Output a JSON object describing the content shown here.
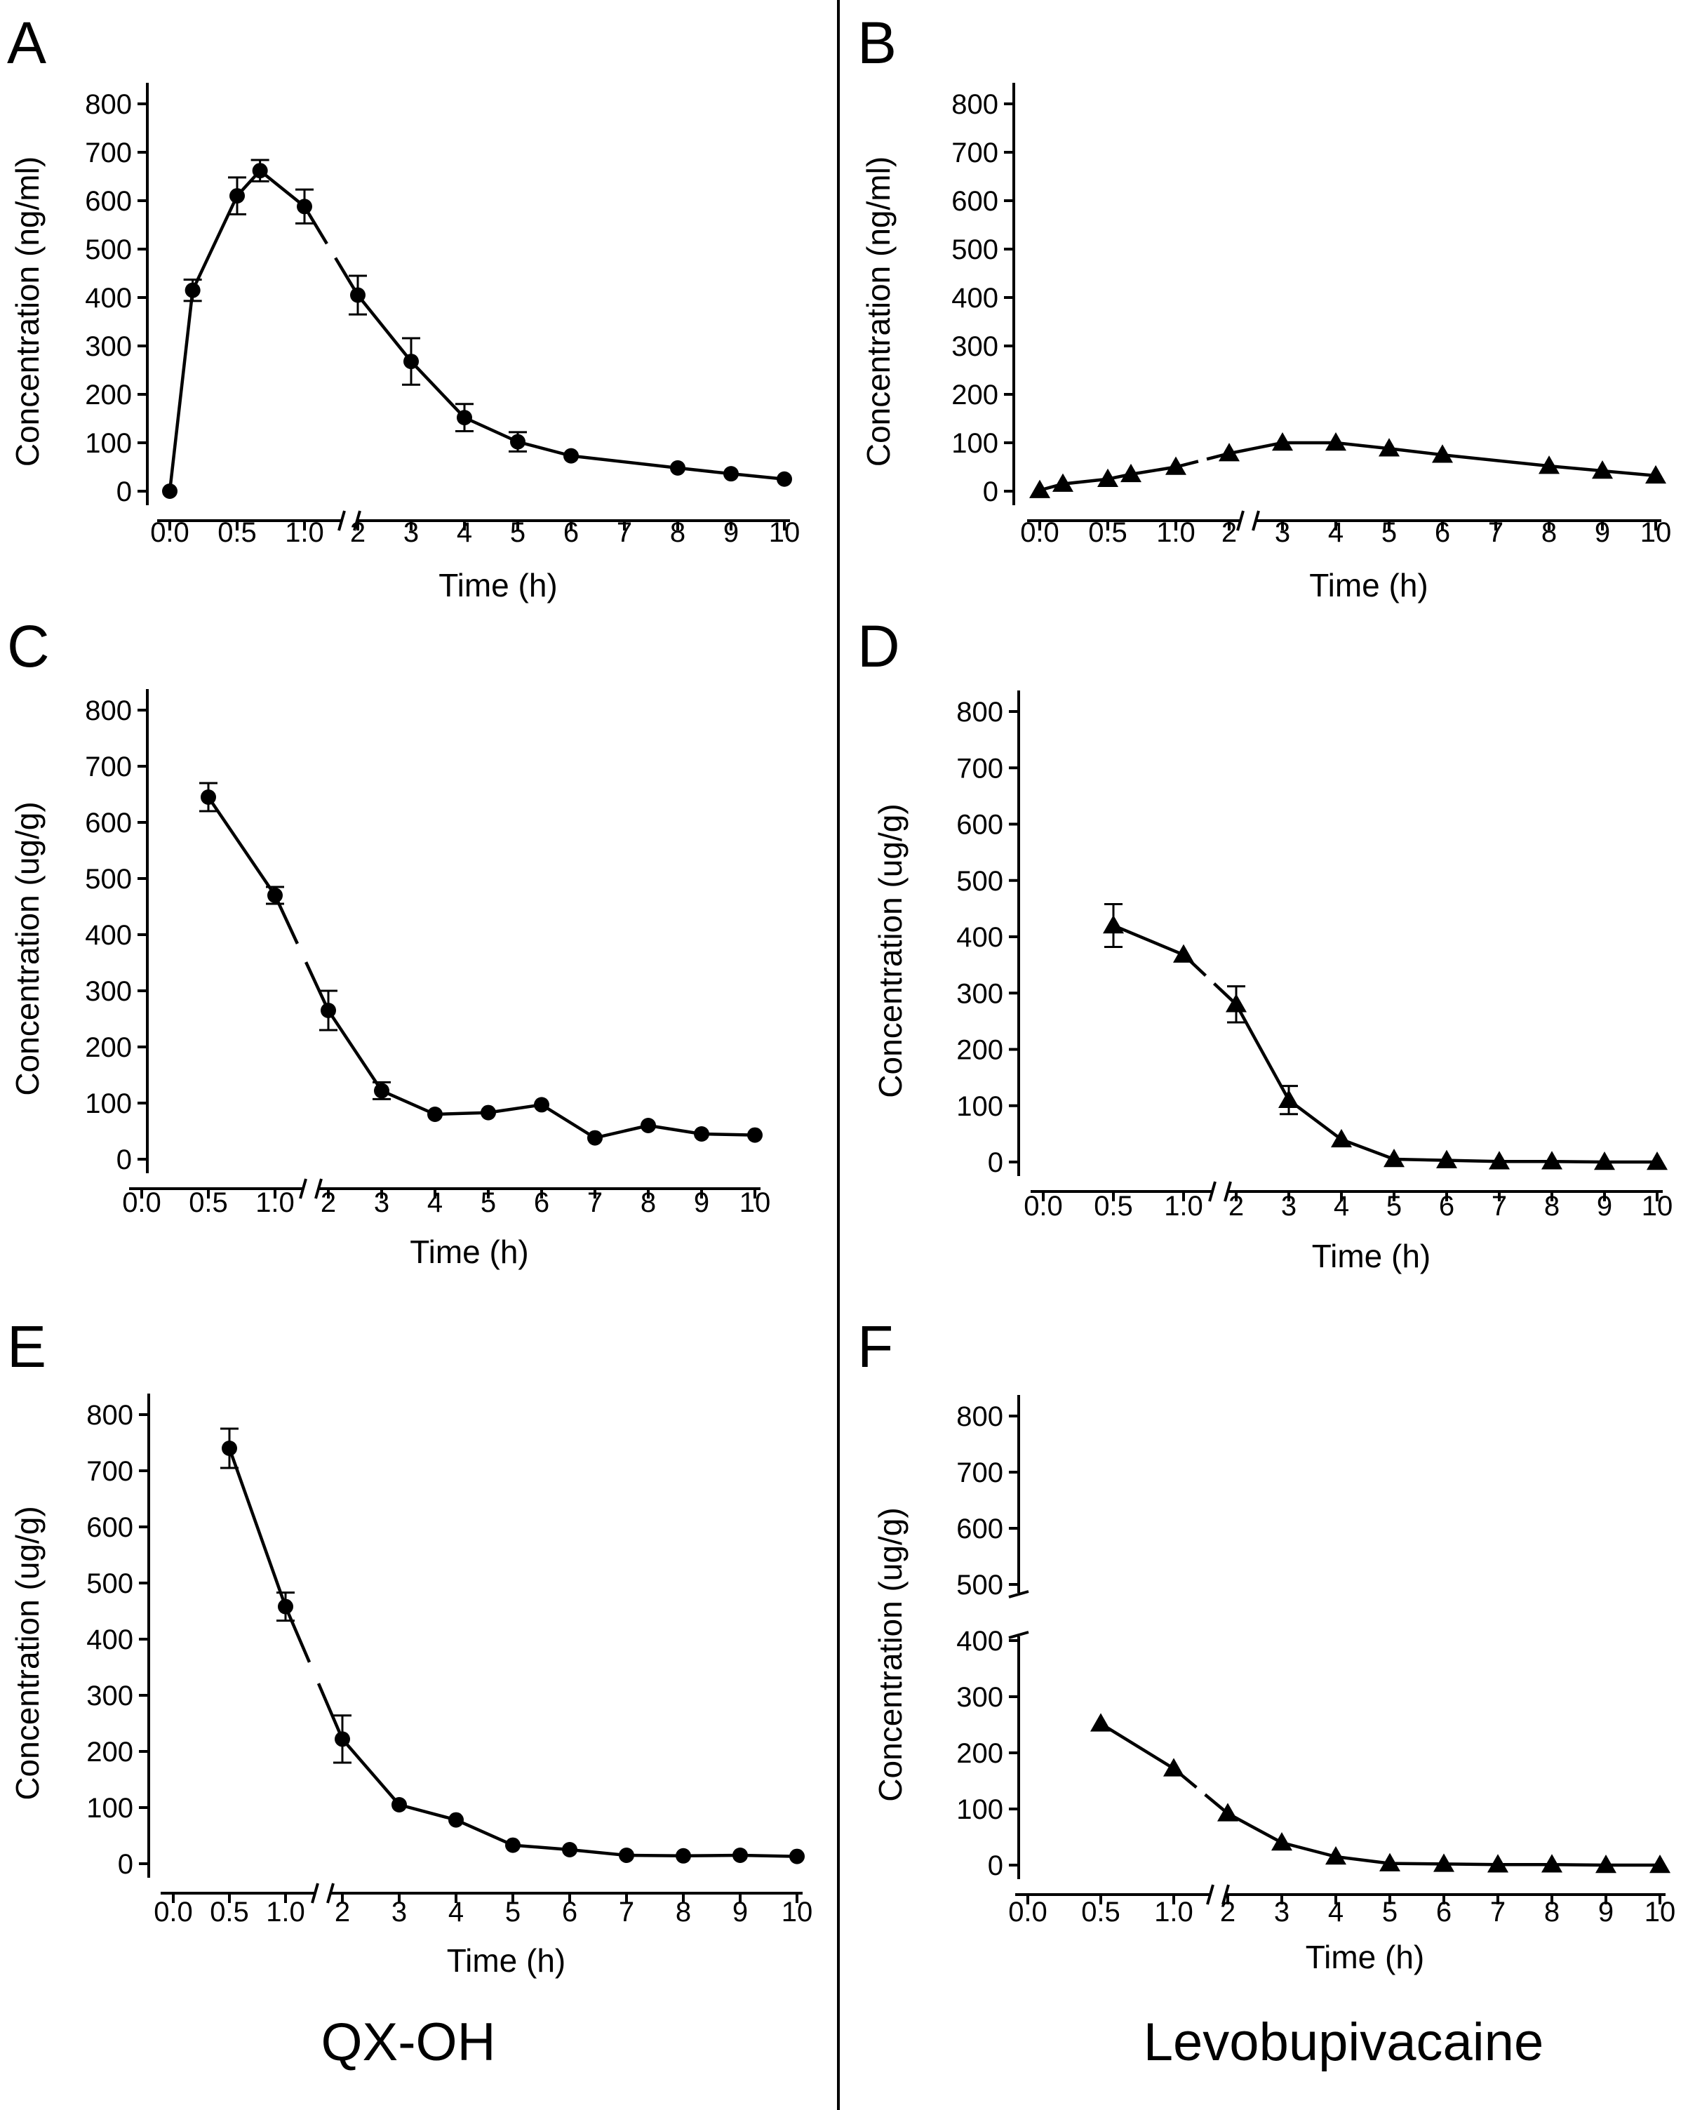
{
  "columns": {
    "left": "QX-OH",
    "right": "Levobupivacaine"
  },
  "chart_data": [
    {
      "panel": "A",
      "type": "line",
      "marker": "circle",
      "xlabel": "Time (h)",
      "ylabel": "Concentration (ng/ml)",
      "ylim": [
        0,
        800
      ],
      "yticks": [
        0,
        100,
        200,
        300,
        400,
        500,
        600,
        700,
        800
      ],
      "x_break": [
        1.0,
        2
      ],
      "y_break": null,
      "xticks": [
        "0.0",
        "0.5",
        "1.0",
        "2",
        "3",
        "4",
        "5",
        "6",
        "7",
        "8",
        "9",
        "10"
      ],
      "x": [
        0,
        0.17,
        0.5,
        0.67,
        1.0,
        2,
        3,
        4,
        5,
        6,
        8,
        9,
        10
      ],
      "values": [
        0,
        415,
        610,
        662,
        588,
        405,
        268,
        152,
        102,
        73,
        48,
        36,
        25
      ],
      "errors": [
        0,
        22,
        38,
        22,
        35,
        40,
        48,
        28,
        20,
        0,
        0,
        0,
        0
      ]
    },
    {
      "panel": "B",
      "type": "line",
      "marker": "triangle",
      "xlabel": "Time (h)",
      "ylabel": "Concentration (ng/ml)",
      "ylim": [
        0,
        800
      ],
      "yticks": [
        0,
        100,
        200,
        300,
        400,
        500,
        600,
        700,
        800
      ],
      "x_break": [
        1.0,
        2
      ],
      "y_break": null,
      "xticks": [
        "0.0",
        "0.5",
        "1.0",
        "2",
        "3",
        "4",
        "5",
        "6",
        "7",
        "8",
        "9",
        "10"
      ],
      "x": [
        0,
        0.17,
        0.5,
        0.67,
        1.0,
        2,
        3,
        4,
        5,
        6,
        8,
        9,
        10
      ],
      "values": [
        2,
        15,
        25,
        35,
        50,
        78,
        100,
        100,
        88,
        75,
        52,
        42,
        32
      ],
      "errors": [
        0,
        0,
        0,
        0,
        0,
        0,
        0,
        0,
        0,
        0,
        0,
        0,
        0
      ]
    },
    {
      "panel": "C",
      "type": "line",
      "marker": "circle",
      "xlabel": "Time (h)",
      "ylabel": "Concentration (ug/g)",
      "ylim": [
        0,
        800
      ],
      "yticks": [
        0,
        100,
        200,
        300,
        400,
        500,
        600,
        700,
        800
      ],
      "x_break": [
        1.0,
        2
      ],
      "y_break": null,
      "xticks": [
        "0.0",
        "0.5",
        "1.0",
        "2",
        "3",
        "4",
        "5",
        "6",
        "7",
        "8",
        "9",
        "10"
      ],
      "x": [
        0.5,
        1.0,
        2,
        3,
        4,
        5,
        6,
        7,
        8,
        9,
        10
      ],
      "values": [
        645,
        470,
        265,
        122,
        80,
        83,
        97,
        38,
        60,
        45,
        43
      ],
      "errors": [
        25,
        15,
        35,
        15,
        0,
        0,
        0,
        0,
        0,
        0,
        0
      ]
    },
    {
      "panel": "D",
      "type": "line",
      "marker": "triangle",
      "xlabel": "Time (h)",
      "ylabel": "Concentration (ug/g)",
      "ylim": [
        0,
        800
      ],
      "yticks": [
        0,
        100,
        200,
        300,
        400,
        500,
        600,
        700,
        800
      ],
      "x_break": [
        1.0,
        2
      ],
      "y_break": null,
      "xticks": [
        "0.0",
        "0.5",
        "1.0",
        "2",
        "3",
        "4",
        "5",
        "6",
        "7",
        "8",
        "9",
        "10"
      ],
      "x": [
        0.5,
        1.0,
        2,
        3,
        4,
        5,
        6,
        7,
        8,
        9,
        10
      ],
      "values": [
        420,
        368,
        280,
        110,
        40,
        5,
        3,
        1,
        1,
        0,
        0
      ],
      "errors": [
        38,
        0,
        32,
        25,
        0,
        0,
        0,
        0,
        0,
        0,
        0
      ]
    },
    {
      "panel": "E",
      "type": "line",
      "marker": "circle",
      "xlabel": "Time (h)",
      "ylabel": "Concentration (ug/g)",
      "ylim": [
        0,
        800
      ],
      "yticks": [
        0,
        100,
        200,
        300,
        400,
        500,
        600,
        700,
        800
      ],
      "x_break": [
        1.0,
        2
      ],
      "y_break": null,
      "xticks": [
        "0.0",
        "0.5",
        "1.0",
        "2",
        "3",
        "4",
        "5",
        "6",
        "7",
        "8",
        "9",
        "10"
      ],
      "x": [
        0.5,
        1.0,
        2,
        3,
        4,
        5,
        6,
        7,
        8,
        9,
        10
      ],
      "values": [
        740,
        458,
        222,
        105,
        78,
        33,
        25,
        15,
        14,
        15,
        13
      ],
      "errors": [
        35,
        25,
        42,
        0,
        0,
        0,
        0,
        0,
        0,
        0,
        0
      ]
    },
    {
      "panel": "F",
      "type": "line",
      "marker": "triangle",
      "xlabel": "Time (h)",
      "ylabel": "Concentration (ug/g)",
      "ylim": [
        0,
        800
      ],
      "yticks": [
        0,
        100,
        200,
        300,
        400,
        500,
        600,
        700,
        800
      ],
      "ytick_labels_shown": [
        0,
        100,
        200,
        300,
        400,
        500,
        600,
        700,
        800
      ],
      "x_break": [
        1.0,
        2
      ],
      "y_break": [
        400,
        500
      ],
      "xticks": [
        "0.0",
        "0.5",
        "1.0",
        "2",
        "3",
        "4",
        "5",
        "6",
        "7",
        "8",
        "9",
        "10"
      ],
      "x": [
        0.5,
        1.0,
        2,
        3,
        4,
        5,
        6,
        7,
        8,
        9,
        10
      ],
      "values": [
        252,
        172,
        92,
        40,
        15,
        3,
        2,
        1,
        1,
        0,
        0
      ],
      "errors": [
        0,
        0,
        0,
        0,
        0,
        0,
        0,
        0,
        0,
        0,
        0
      ]
    }
  ]
}
